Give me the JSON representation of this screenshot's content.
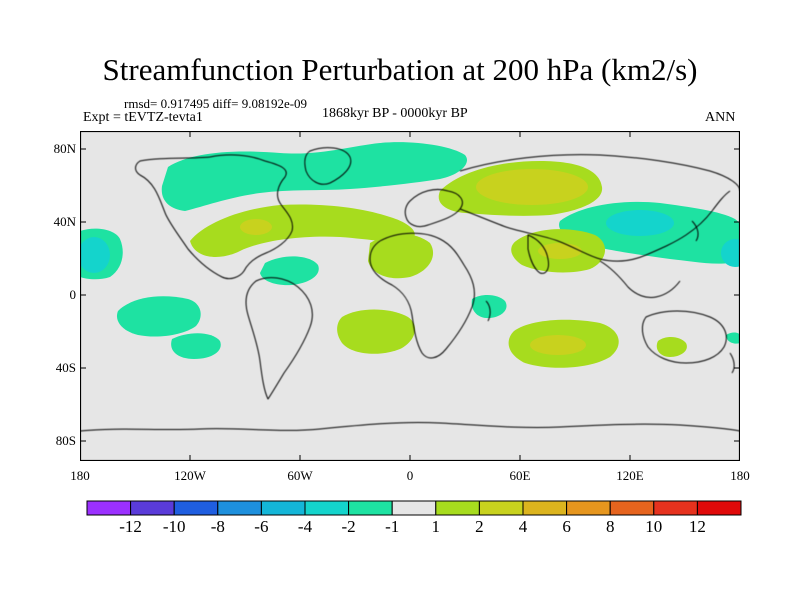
{
  "title": "Streamfunction Perturbation at 200 hPa (km2/s)",
  "stats": "rmsd= 0.917495 diff= 9.08192e-09",
  "experiment": "Expt = tEVTZ-tevta1",
  "period": "1868kyr BP - 0000kyr BP",
  "season": "ANN",
  "axes": {
    "y_labels": [
      "80N",
      "40N",
      "0",
      "40S",
      "80S"
    ],
    "x_labels": [
      "180",
      "120W",
      "60W",
      "0",
      "60E",
      "120E",
      "180"
    ]
  },
  "colorbar": {
    "labels": [
      "-12",
      "-10",
      "-8",
      "-6",
      "-4",
      "-2",
      "-1",
      "1",
      "2",
      "4",
      "6",
      "8",
      "10",
      "12"
    ],
    "colors": [
      "#9b30ff",
      "#5a3bd9",
      "#1f5ee0",
      "#1e90dd",
      "#14b6d8",
      "#14d4cc",
      "#1ee2a2",
      "#e6e6e6",
      "#a7dc1e",
      "#c8d21e",
      "#dcb41e",
      "#e6961e",
      "#e6641e",
      "#e6321e",
      "#e00a0a"
    ]
  },
  "colors": {
    "background_field": "#e6e6e6",
    "neg_1": "#1ee2a2",
    "neg_2": "#14d4cc",
    "pos_1": "#a7dc1e",
    "pos_2": "#c8d21e"
  }
}
